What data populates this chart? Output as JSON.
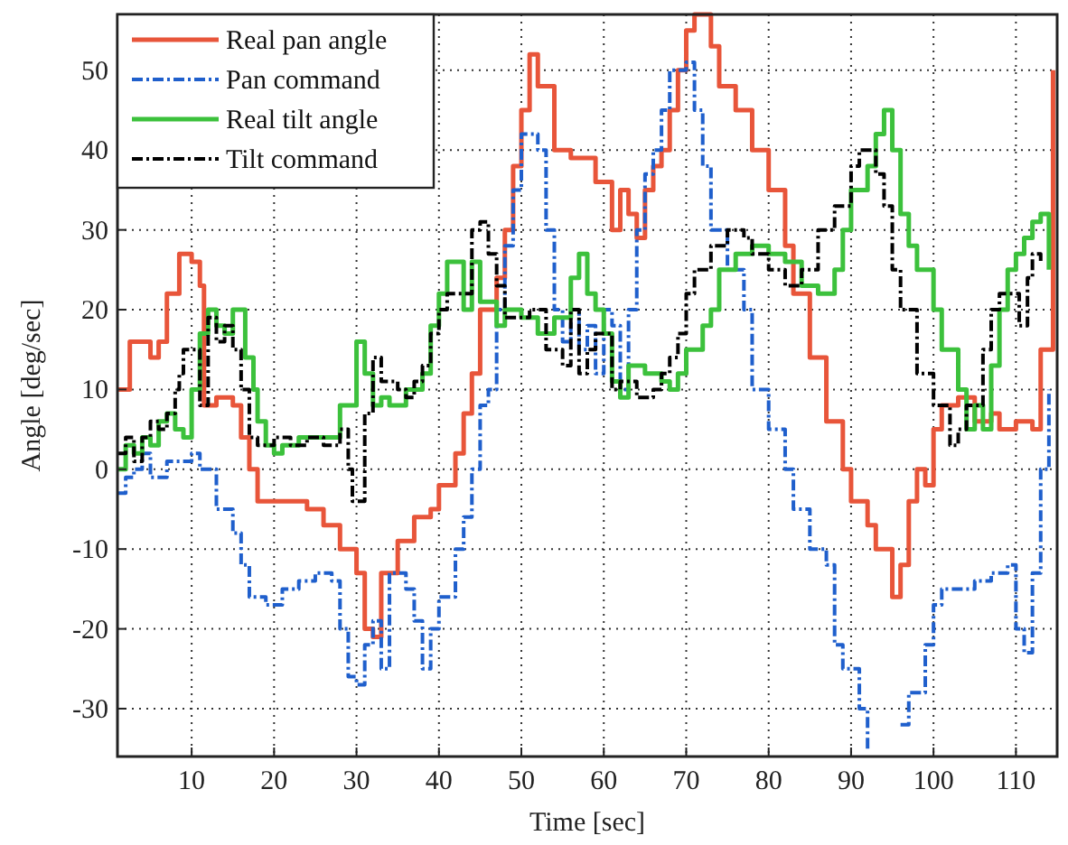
{
  "chart_data": {
    "type": "step",
    "xlabel": "Time [sec]",
    "ylabel": "Angle [deg/sec]",
    "xlim": [
      1,
      115
    ],
    "ylim": [
      -36,
      57
    ],
    "xticks": [
      10,
      20,
      30,
      40,
      50,
      60,
      70,
      80,
      90,
      100,
      110
    ],
    "yticks": [
      -30,
      -20,
      -10,
      0,
      10,
      20,
      30,
      40,
      50
    ],
    "grid": true,
    "legend": "top left",
    "marker": "none",
    "series": [
      {
        "name": "Real pan angle",
        "color": "#e8553a",
        "line_style": "solid",
        "x": [
          1,
          2.5,
          5,
          6,
          7,
          8.5,
          10,
          11,
          11.5,
          13,
          15,
          16,
          17,
          18,
          20,
          24,
          26,
          28,
          30,
          31,
          32,
          33,
          35,
          37,
          39,
          40,
          42,
          43,
          44,
          45,
          47,
          48,
          49,
          50,
          51,
          52,
          54,
          56,
          59,
          61,
          62,
          63,
          64,
          65,
          66,
          67,
          68,
          69,
          70,
          71,
          73,
          74,
          76,
          78,
          80,
          82,
          83,
          85,
          87,
          89,
          90,
          92,
          93,
          95,
          96,
          97,
          98,
          99,
          100,
          101,
          103,
          105,
          107,
          108,
          110,
          112,
          113,
          114.5
        ],
        "values": [
          10,
          16,
          14,
          16,
          22,
          27,
          26,
          23,
          8,
          9,
          8,
          4,
          0,
          -4,
          -4,
          -5,
          -7,
          -10,
          -13,
          -20,
          -21,
          -13,
          -9,
          -6,
          -5,
          -2,
          2,
          7,
          12,
          20,
          24,
          30,
          38,
          45,
          52,
          48,
          40,
          39,
          36,
          30,
          35,
          32,
          29,
          35,
          38,
          40,
          45,
          50,
          55,
          57,
          53,
          48,
          45,
          40,
          35,
          28,
          22,
          14,
          6,
          0,
          -4,
          -7,
          -10,
          -16,
          -12,
          -4,
          0,
          -2,
          5,
          8,
          9,
          6,
          7,
          5,
          6,
          5,
          15,
          50
        ]
      },
      {
        "name": "Pan command",
        "color": "#1f5fcc",
        "line_style": "dashed",
        "x": [
          1,
          2,
          3,
          4,
          5,
          7,
          10,
          11,
          13,
          15,
          16,
          17,
          19,
          21,
          23,
          25,
          27,
          28,
          29,
          30,
          31,
          32,
          33,
          34,
          36,
          37,
          38,
          39,
          40,
          42,
          43,
          44,
          45,
          46,
          47,
          48,
          49,
          50,
          52,
          53,
          54,
          55,
          56,
          57,
          58,
          59,
          60,
          61,
          62,
          63,
          64,
          65,
          66,
          67,
          68,
          70,
          71,
          72,
          73,
          75,
          77,
          78,
          80,
          82,
          83,
          85,
          87,
          88,
          89,
          91,
          92,
          93,
          95,
          96,
          97,
          99,
          100,
          101,
          103,
          105,
          107,
          109,
          110,
          111,
          112,
          113,
          114
        ],
        "values": [
          -3,
          -1,
          0,
          2,
          -1,
          1,
          2,
          0,
          -5,
          -8,
          -12,
          -16,
          -17,
          -15,
          -14,
          -13,
          -14,
          -20,
          -26,
          -27,
          -22,
          -19,
          -25,
          -13,
          -15,
          -19,
          -25,
          -20,
          -16,
          -10,
          -6,
          0,
          8,
          10,
          20,
          28,
          35,
          42,
          40,
          30,
          20,
          16,
          20,
          15,
          18,
          12,
          20,
          18,
          10,
          20,
          30,
          37,
          40,
          45,
          50,
          51,
          45,
          38,
          30,
          25,
          20,
          10,
          5,
          0,
          -5,
          -10,
          -12,
          -22,
          -25,
          -30,
          -35,
          null,
          null,
          -32,
          -28,
          -22,
          -17,
          -15,
          -15,
          -14,
          -13,
          -12,
          -20,
          -23,
          -13,
          0,
          10
        ]
      },
      {
        "name": "Real tilt angle",
        "color": "#3cc13c",
        "line_style": "solid",
        "x": [
          1,
          2,
          3,
          4,
          5,
          6,
          7,
          8,
          9,
          10,
          11,
          12,
          13,
          14,
          15,
          16.5,
          17.5,
          18,
          19,
          20,
          21,
          23,
          25,
          28,
          30,
          31,
          32,
          33,
          34,
          36,
          38,
          39,
          40,
          41,
          43,
          44,
          45,
          47,
          48,
          50,
          52,
          54,
          56,
          57,
          58,
          59,
          60,
          61,
          62,
          63,
          65,
          67,
          68,
          69,
          70,
          72,
          73,
          74,
          76,
          78,
          80,
          82,
          84,
          86,
          88,
          89,
          90,
          92,
          93,
          94,
          95,
          96,
          97,
          98,
          100,
          101,
          103,
          104,
          105,
          106,
          107,
          108,
          109,
          110,
          111,
          112,
          113,
          114
        ],
        "values": [
          0,
          3,
          2,
          4,
          3,
          6,
          7,
          5,
          4,
          10,
          17,
          20,
          18,
          17,
          20,
          14,
          10,
          6,
          3,
          2,
          3,
          4,
          4,
          8,
          16,
          12,
          8,
          9,
          8,
          10,
          12,
          18,
          22,
          26,
          20,
          26,
          21,
          18,
          20,
          19,
          17,
          19,
          24,
          27,
          22,
          20,
          17,
          11,
          9,
          13,
          12,
          11,
          10,
          12,
          15,
          18,
          20,
          25,
          27,
          28,
          27,
          26,
          23,
          22,
          25,
          30,
          35,
          38,
          42,
          45,
          40,
          32,
          28,
          25,
          20,
          15,
          10,
          5,
          8,
          5,
          13,
          20,
          25,
          27,
          29,
          31,
          32,
          25
        ]
      },
      {
        "name": "Tilt command",
        "color": "#000000",
        "line_style": "dashed",
        "x": [
          1,
          2,
          3,
          4,
          5,
          6,
          7,
          8,
          8.5,
          9,
          11,
          12,
          13,
          14,
          15,
          16,
          17,
          18,
          20,
          22,
          24,
          26,
          28,
          29,
          29.5,
          31,
          32,
          33,
          35,
          36,
          37,
          38,
          39,
          40,
          41,
          44,
          45,
          46,
          47,
          48,
          50,
          51,
          53,
          55,
          56,
          57,
          58,
          59,
          61,
          62,
          64,
          66,
          67,
          68,
          69,
          70,
          71,
          73,
          75,
          77,
          78,
          80,
          82,
          84,
          86,
          88,
          90,
          91,
          93,
          94,
          95,
          96,
          98,
          100,
          102,
          103,
          104,
          106,
          107,
          108,
          110.4,
          111.4,
          112,
          113
        ],
        "values": [
          2,
          4,
          1,
          4,
          6,
          5,
          7,
          10,
          12,
          15,
          8,
          19,
          16,
          18,
          15,
          10,
          4,
          3,
          4,
          3,
          4,
          3,
          5,
          0,
          -4,
          7,
          14,
          11,
          10,
          9,
          11,
          13,
          17,
          20,
          22,
          30,
          31,
          27,
          23,
          19,
          19,
          20,
          15,
          13,
          20,
          12,
          15,
          17,
          10,
          11,
          9,
          10,
          12,
          14,
          17,
          22,
          25,
          28,
          30,
          29,
          27,
          25,
          23,
          25,
          30,
          33,
          38,
          40,
          37,
          33,
          25,
          20,
          12,
          8,
          3,
          5,
          8,
          15,
          20,
          22,
          18,
          24,
          27,
          26
        ]
      }
    ]
  }
}
